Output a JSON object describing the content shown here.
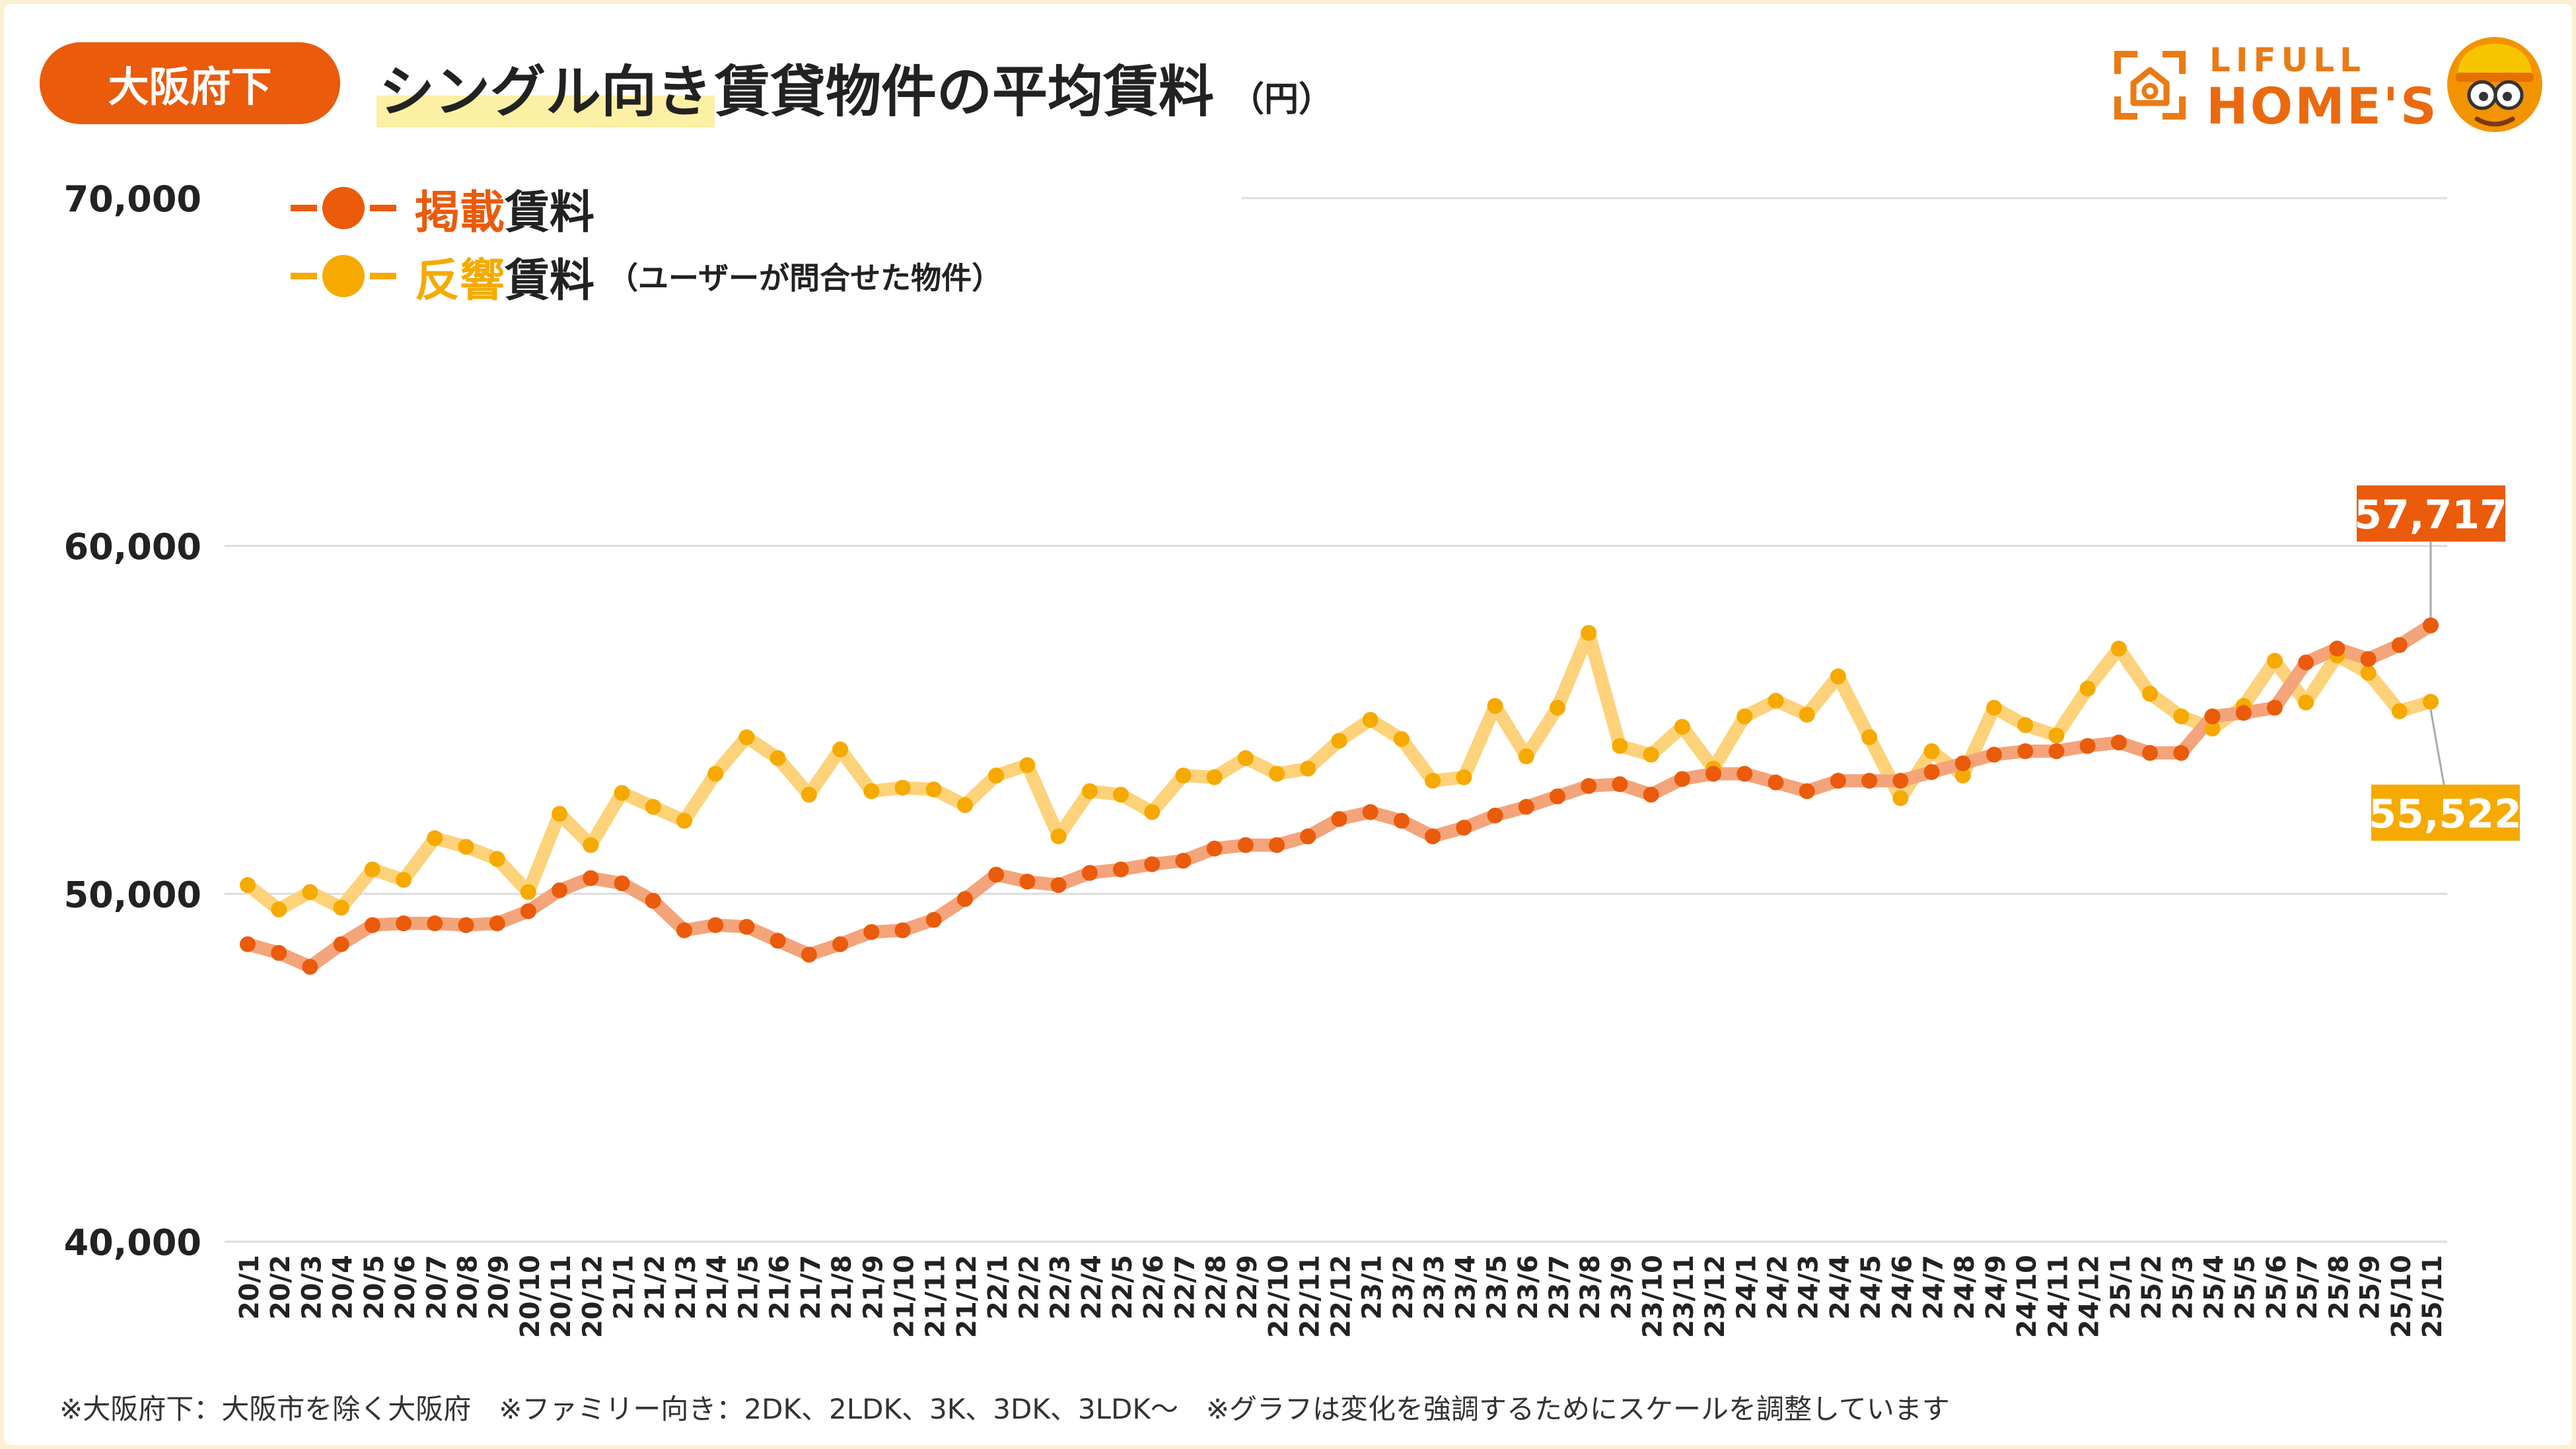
{
  "header": {
    "region_badge": "大阪府下",
    "title_highlight": "シングル向き",
    "title_rest": "賃貸物件の平均賃料",
    "title_unit": "（円）"
  },
  "logo": {
    "top_text": "LIFULL",
    "main_text": "HOME'S"
  },
  "legend": {
    "listing": {
      "accent": "掲載",
      "rest": "賃料"
    },
    "response": {
      "accent": "反響",
      "rest": "賃料",
      "note": "（ユーザーが問合せた物件）"
    }
  },
  "footnote": "※大阪府下：大阪市を除く大阪府　※ファミリー向き：2DK、2LDK、3K、3DK、3LDK～　※グラフは変化を強調するためにスケールを調整しています",
  "colors": {
    "listing": "#ea5b0c",
    "listing_line": "#f4a47a",
    "response": "#f6aa00",
    "response_line": "#fdd27a",
    "grid": "#dddddd",
    "axis_text": "#222222"
  },
  "chart_data": {
    "type": "line",
    "title": "シングル向き賃貸物件の平均賃料",
    "ylabel": "（円）",
    "ylim": [
      40000,
      70000
    ],
    "yticks": [
      40000,
      50000,
      60000,
      70000
    ],
    "ytick_labels": [
      "40,000",
      "50,000",
      "60,000",
      "70,000"
    ],
    "grid": true,
    "legend_position": "top-left",
    "categories": [
      "20/1",
      "20/2",
      "20/3",
      "20/4",
      "20/5",
      "20/6",
      "20/7",
      "20/8",
      "20/9",
      "20/10",
      "20/11",
      "20/12",
      "21/1",
      "21/2",
      "21/3",
      "21/4",
      "21/5",
      "21/6",
      "21/7",
      "21/8",
      "21/9",
      "21/10",
      "21/11",
      "21/12",
      "22/1",
      "22/2",
      "22/3",
      "22/4",
      "22/5",
      "22/6",
      "22/7",
      "22/8",
      "22/9",
      "22/10",
      "22/11",
      "22/12",
      "23/1",
      "23/2",
      "23/3",
      "23/4",
      "23/5",
      "23/6",
      "23/7",
      "23/8",
      "23/9",
      "23/10",
      "23/11",
      "23/12",
      "24/1",
      "24/2",
      "24/3",
      "24/4",
      "24/5",
      "24/6",
      "24/7",
      "24/8",
      "24/9",
      "24/10",
      "24/11",
      "24/12",
      "25/1",
      "25/2",
      "25/3",
      "25/4",
      "25/5",
      "25/6",
      "25/7",
      "25/8",
      "25/9",
      "25/10",
      "25/11"
    ],
    "series": [
      {
        "name": "掲載賃料",
        "values": [
          48550,
          48300,
          47900,
          48550,
          49100,
          49150,
          49150,
          49100,
          49150,
          49500,
          50100,
          50450,
          50300,
          49800,
          48950,
          49100,
          49050,
          48650,
          48250,
          48550,
          48900,
          48950,
          49250,
          49850,
          50550,
          50350,
          50250,
          50600,
          50700,
          50850,
          50950,
          51300,
          51400,
          51400,
          51650,
          52150,
          52350,
          52100,
          51650,
          51900,
          52250,
          52500,
          52800,
          53100,
          53150,
          52850,
          53300,
          53450,
          53450,
          53200,
          52950,
          53250,
          53250,
          53250,
          53500,
          53750,
          54000,
          54100,
          54100,
          54250,
          54350,
          54050,
          54050,
          55100,
          55200,
          55350,
          56650,
          57050,
          56750,
          57150,
          57717
        ],
        "end_label": "57,717"
      },
      {
        "name": "反響賃料",
        "values": [
          50250,
          49550,
          50050,
          49600,
          50700,
          50400,
          51600,
          51350,
          51000,
          50050,
          52300,
          51400,
          52900,
          52500,
          52100,
          53450,
          54500,
          53900,
          52850,
          54150,
          52950,
          53050,
          53000,
          52550,
          53400,
          53700,
          51650,
          52950,
          52850,
          52350,
          53400,
          53350,
          53900,
          53450,
          53600,
          54400,
          55000,
          54450,
          53250,
          53350,
          55400,
          53950,
          55350,
          57500,
          54250,
          54000,
          54800,
          53600,
          55100,
          55550,
          55150,
          56250,
          54500,
          52750,
          54100,
          53400,
          55350,
          54850,
          54550,
          55900,
          57050,
          55750,
          55100,
          54750,
          55400,
          56700,
          55500,
          56850,
          56350,
          55250,
          55522
        ],
        "end_label": "55,522"
      }
    ]
  }
}
